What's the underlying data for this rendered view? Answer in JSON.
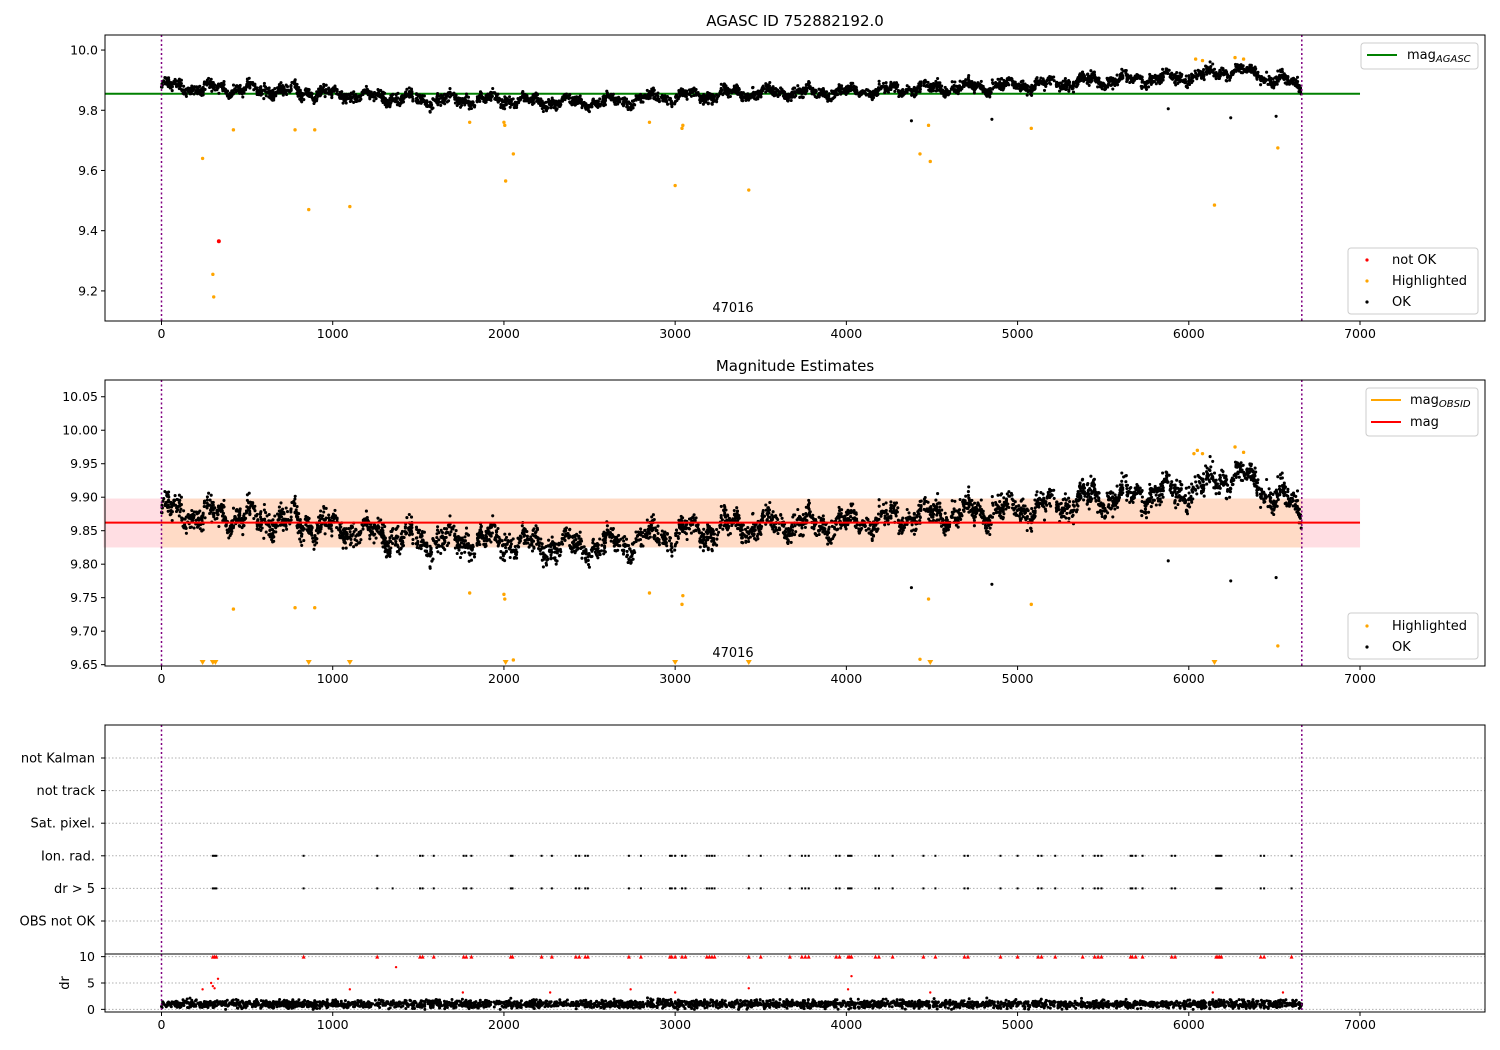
{
  "colors": {
    "ok": "#000000",
    "highlighted": "#ffa500",
    "not_ok": "#ff0000",
    "agasc_line": "#008000",
    "mag_line": "#ff0000",
    "obsid_line": "#ffa500",
    "band": "#ffb6c1",
    "band_inner": "#ffdab9",
    "obs_boundary": "#800080",
    "grid": "#b0b0b0"
  },
  "chart_data": [
    {
      "id": "agasc",
      "type": "scatter",
      "title": "AGASC ID 752882192.0",
      "xlim": [
        -330,
        7730
      ],
      "ylim": [
        9.1,
        10.05
      ],
      "xticks": [
        0,
        1000,
        2000,
        3000,
        4000,
        5000,
        6000,
        7000
      ],
      "yticks": [
        9.2,
        9.4,
        9.6,
        9.8,
        10.0
      ],
      "ytick_labels": [
        "9.2",
        "9.4",
        "9.6",
        "9.8",
        "10.0"
      ],
      "obs_boundaries": [
        0,
        6660
      ],
      "obsid_label": "47016",
      "agasc_mag": 9.855,
      "ok_trend": [
        [
          0,
          9.88
        ],
        [
          500,
          9.87
        ],
        [
          1000,
          9.855
        ],
        [
          1500,
          9.835
        ],
        [
          2000,
          9.835
        ],
        [
          2500,
          9.825
        ],
        [
          3000,
          9.845
        ],
        [
          3500,
          9.86
        ],
        [
          4000,
          9.86
        ],
        [
          4500,
          9.875
        ],
        [
          5000,
          9.88
        ],
        [
          5500,
          9.9
        ],
        [
          6000,
          9.91
        ],
        [
          6300,
          9.935
        ],
        [
          6660,
          9.88
        ]
      ],
      "ok_spread": 0.022,
      "ok_n": 3800,
      "ok_outliers": [
        [
          5880,
          9.805
        ],
        [
          6245,
          9.775
        ],
        [
          6510,
          9.78
        ],
        [
          4850,
          9.77
        ],
        [
          4380,
          9.765
        ]
      ],
      "highlighted": [
        [
          240,
          9.64
        ],
        [
          300,
          9.255
        ],
        [
          305,
          9.18
        ],
        [
          420,
          9.735
        ],
        [
          780,
          9.735
        ],
        [
          860,
          9.47
        ],
        [
          895,
          9.735
        ],
        [
          1100,
          9.48
        ],
        [
          1800,
          9.76
        ],
        [
          2000,
          9.76
        ],
        [
          2005,
          9.75
        ],
        [
          2010,
          9.565
        ],
        [
          2055,
          9.655
        ],
        [
          2850,
          9.76
        ],
        [
          3000,
          9.55
        ],
        [
          3040,
          9.74
        ],
        [
          3045,
          9.75
        ],
        [
          3430,
          9.535
        ],
        [
          4430,
          9.655
        ],
        [
          4480,
          9.75
        ],
        [
          4490,
          9.63
        ],
        [
          5080,
          9.74
        ],
        [
          6040,
          9.97
        ],
        [
          6080,
          9.965
        ],
        [
          6150,
          9.485
        ],
        [
          6270,
          9.975
        ],
        [
          6320,
          9.97
        ],
        [
          6520,
          9.675
        ]
      ],
      "not_ok": [
        [
          335,
          9.365
        ]
      ],
      "legend_line": {
        "label": "mag",
        "sub": "AGASC"
      },
      "legend_scatter": [
        "not OK",
        "Highlighted",
        "OK"
      ]
    },
    {
      "id": "estimates",
      "type": "scatter",
      "title": "Magnitude Estimates",
      "xlim": [
        -330,
        7730
      ],
      "ylim": [
        9.648,
        10.075
      ],
      "xticks": [
        0,
        1000,
        2000,
        3000,
        4000,
        5000,
        6000,
        7000
      ],
      "yticks": [
        9.65,
        9.7,
        9.75,
        9.8,
        9.85,
        9.9,
        9.95,
        10.0,
        10.05
      ],
      "ytick_labels": [
        "9.65",
        "9.70",
        "9.75",
        "9.80",
        "9.85",
        "9.90",
        "9.95",
        "10.00",
        "10.05"
      ],
      "obs_boundaries": [
        0,
        6660
      ],
      "obsid_label": "47016",
      "mag": 9.862,
      "band": [
        9.825,
        9.898
      ],
      "band_x": [
        0,
        7000
      ],
      "band_inner_x": [
        0,
        6660
      ],
      "ok_trend": [
        [
          0,
          9.88
        ],
        [
          500,
          9.87
        ],
        [
          1000,
          9.855
        ],
        [
          1500,
          9.835
        ],
        [
          2000,
          9.835
        ],
        [
          2500,
          9.825
        ],
        [
          3000,
          9.845
        ],
        [
          3500,
          9.86
        ],
        [
          4000,
          9.86
        ],
        [
          4500,
          9.875
        ],
        [
          5000,
          9.88
        ],
        [
          5500,
          9.9
        ],
        [
          6000,
          9.91
        ],
        [
          6300,
          9.935
        ],
        [
          6660,
          9.88
        ]
      ],
      "ok_spread": 0.022,
      "ok_n": 3800,
      "ok_outliers": [
        [
          5880,
          9.805
        ],
        [
          6245,
          9.775
        ],
        [
          6510,
          9.78
        ],
        [
          4850,
          9.77
        ],
        [
          4380,
          9.765
        ]
      ],
      "highlighted": [
        [
          420,
          9.733
        ],
        [
          780,
          9.735
        ],
        [
          895,
          9.735
        ],
        [
          1800,
          9.757
        ],
        [
          2000,
          9.755
        ],
        [
          2005,
          9.748
        ],
        [
          2055,
          9.657
        ],
        [
          2850,
          9.757
        ],
        [
          3040,
          9.74
        ],
        [
          3045,
          9.753
        ],
        [
          4430,
          9.658
        ],
        [
          4480,
          9.748
        ],
        [
          5080,
          9.74
        ],
        [
          6030,
          9.965
        ],
        [
          6050,
          9.97
        ],
        [
          6080,
          9.965
        ],
        [
          6270,
          9.975
        ],
        [
          6320,
          9.967
        ],
        [
          6520,
          9.678
        ]
      ],
      "highlighted_offscale_x": [
        240,
        300,
        315,
        860,
        1100,
        2010,
        3000,
        3430,
        4490,
        6150
      ],
      "legend_lines": [
        {
          "label": "mag",
          "sub": "OBSID"
        },
        {
          "label": "mag",
          "sub": ""
        }
      ],
      "legend_scatter": [
        "Highlighted",
        "OK"
      ]
    },
    {
      "id": "flags",
      "type": "scatter",
      "xlim": [
        -330,
        7730
      ],
      "categories": [
        "not Kalman",
        "not track",
        "Sat. pixel.",
        "Ion. rad.",
        "dr > 5",
        "OBS not OK"
      ],
      "obs_boundaries": [
        0,
        6660
      ],
      "flag_times": [
        300,
        310,
        320,
        830,
        1260,
        1510,
        1525,
        1590,
        1765,
        1780,
        1810,
        2040,
        2050,
        2220,
        2280,
        2420,
        2440,
        2475,
        2490,
        2730,
        2800,
        2970,
        2980,
        3000,
        3040,
        3060,
        3185,
        3200,
        3215,
        3230,
        3430,
        3500,
        3670,
        3740,
        3760,
        3780,
        3940,
        3960,
        4010,
        4020,
        4030,
        4170,
        4190,
        4270,
        4450,
        4520,
        4690,
        4710,
        4900,
        5000,
        5120,
        5140,
        5220,
        5380,
        5450,
        5470,
        5490,
        5660,
        5670,
        5690,
        5730,
        5900,
        5920,
        6160,
        6170,
        6180,
        6190,
        6420,
        6440,
        6600
      ],
      "flag_rows": [
        "Ion. rad.",
        "dr > 5"
      ],
      "extra_dr5": [
        1350
      ]
    },
    {
      "id": "dr",
      "type": "scatter",
      "ylabel": "dr",
      "xlim": [
        -330,
        7730
      ],
      "ylim": [
        -0.5,
        10.5
      ],
      "xticks": [
        0,
        1000,
        2000,
        3000,
        4000,
        5000,
        6000,
        7000
      ],
      "yticks": [
        0,
        5,
        10
      ],
      "ok_mean": 1.0,
      "ok_n": 3000,
      "red_capped_y": 10,
      "red_points": [
        [
          240,
          3.8
        ],
        [
          290,
          5.0
        ],
        [
          300,
          4.4
        ],
        [
          310,
          4.0
        ],
        [
          330,
          5.8
        ],
        [
          1100,
          3.8
        ],
        [
          1370,
          8.0
        ],
        [
          1760,
          3.2
        ],
        [
          2270,
          3.2
        ],
        [
          2740,
          3.8
        ],
        [
          3000,
          3.2
        ],
        [
          3430,
          4.0
        ],
        [
          4010,
          3.8
        ],
        [
          4030,
          6.3
        ],
        [
          4490,
          3.2
        ],
        [
          6140,
          3.2
        ],
        [
          6550,
          3.2
        ]
      ],
      "obs_boundaries": [
        0,
        6660
      ]
    }
  ]
}
